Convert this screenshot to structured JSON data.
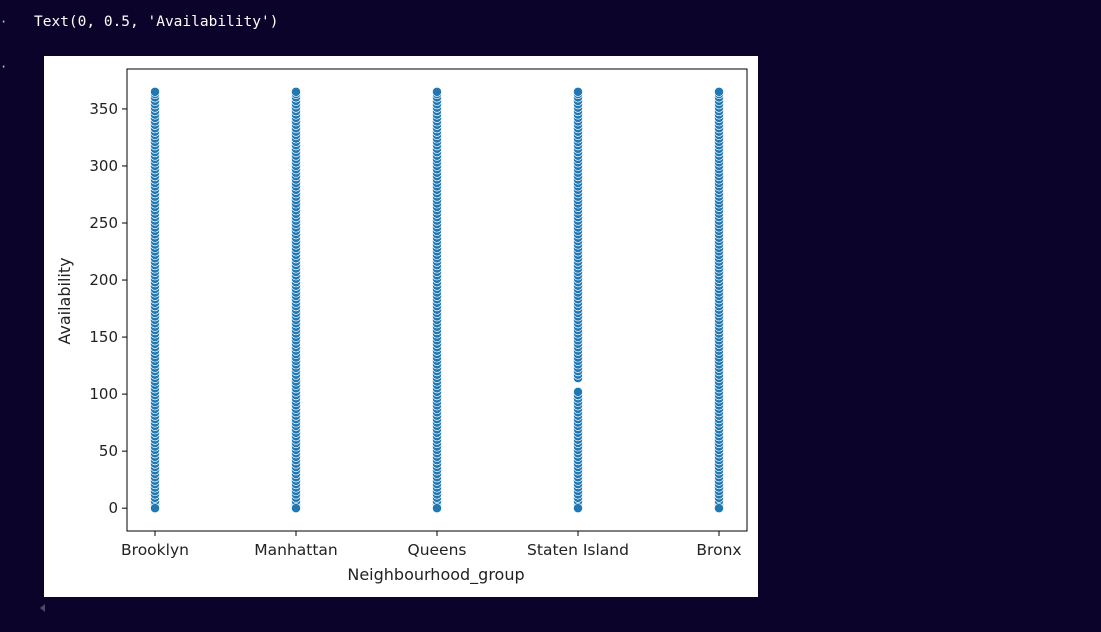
{
  "output_text": "Text(0, 0.5, 'Availability')",
  "gutter_markers": [
    "·",
    "·"
  ],
  "icons": {
    "scroll_left": "chevron-left-icon"
  },
  "colors": {
    "page_background": "#0c032b",
    "marker_fill": "#1f77b4",
    "marker_edge": "#ffffff"
  },
  "chart_data": {
    "type": "scatter",
    "title": "",
    "xlabel": "Neighbourhood_group",
    "ylabel": "Availability",
    "categories": [
      "Brooklyn",
      "Manhattan",
      "Queens",
      "Staten Island",
      "Bronx"
    ],
    "ylim": [
      -20,
      385
    ],
    "yticks": [
      0,
      50,
      100,
      150,
      200,
      250,
      300,
      350
    ],
    "grid": false,
    "legend": "none",
    "series": [
      {
        "category": "Brooklyn",
        "min": 0,
        "max": 365,
        "gaps": []
      },
      {
        "category": "Manhattan",
        "min": 0,
        "max": 365,
        "gaps": []
      },
      {
        "category": "Queens",
        "min": 0,
        "max": 365,
        "gaps": []
      },
      {
        "category": "Staten Island",
        "min": 0,
        "max": 365,
        "gaps": [
          [
            102,
            112
          ]
        ]
      },
      {
        "category": "Bronx",
        "min": 0,
        "max": 365,
        "gaps": []
      }
    ]
  }
}
